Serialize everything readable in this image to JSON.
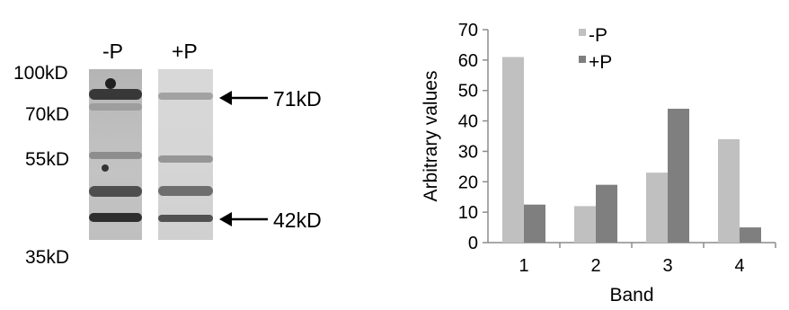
{
  "blot": {
    "lane_labels": [
      "-P",
      "+P"
    ],
    "mw_markers": [
      "100kD",
      "70kD",
      "55kD",
      "35kD"
    ],
    "arrows": [
      "71kD",
      "42kD"
    ]
  },
  "colors": {
    "minus_p": "#c0c0c0",
    "plus_p": "#7f7f7f",
    "axis": "#8c8c8c"
  },
  "chart_data": {
    "type": "bar",
    "categories": [
      "1",
      "2",
      "3",
      "4"
    ],
    "series": [
      {
        "name": "-P",
        "values": [
          61,
          12,
          23,
          34
        ]
      },
      {
        "name": "+P",
        "values": [
          12.5,
          19,
          44,
          5
        ]
      }
    ],
    "xlabel": "Band",
    "ylabel": "Arbitrary values",
    "ylim": [
      0,
      70
    ],
    "yticks": [
      "0",
      "10",
      "20",
      "30",
      "40",
      "50",
      "60",
      "70"
    ],
    "legend": "top",
    "grid": false
  }
}
